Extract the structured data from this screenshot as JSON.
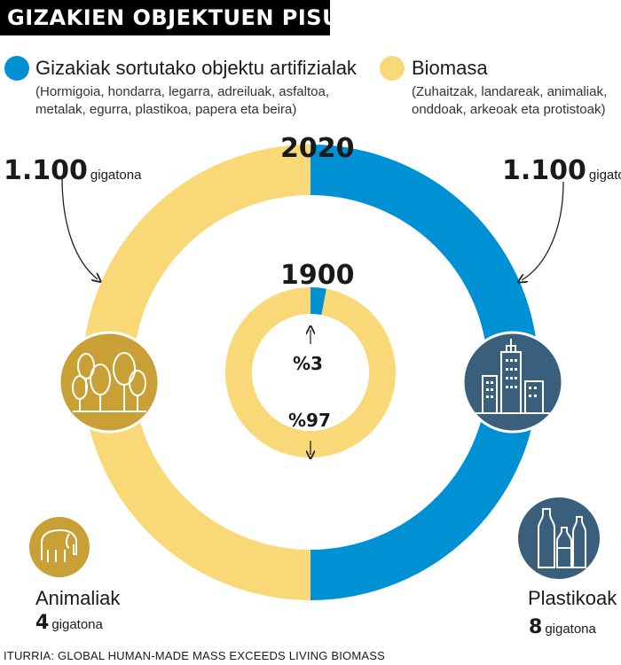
{
  "title": "GIZAKIEN OBJEKTUEN PISUA",
  "legend": [
    {
      "label": "Gizakiak sortutako objektu artifizialak",
      "desc_line1": "(Hormigoia, hondarra, legarra, adreiluak, asfaltoa,",
      "desc_line2": "metalak, egurra, plastikoa, papera eta beira)",
      "color": "#0090d4"
    },
    {
      "label": "Biomasa",
      "desc_line1": "(Zuhaitzak, landareak, animaliak,",
      "desc_line2": "onddoak, arkeoak eta protistoak)",
      "color": "#f9d878"
    }
  ],
  "labels": {
    "biomass_2020_value": "1.100",
    "artificial_2020_value": "1.100",
    "unit": "gigatona",
    "pct_artificial_1900": "%3",
    "pct_biomass_1900": "%97",
    "animals_name": "Animaliak",
    "animals_value": "4",
    "plastics_name": "Plastikoak",
    "plastics_value": "8"
  },
  "icons": {
    "trees": "trees-icon",
    "buildings": "buildings-icon",
    "elephant": "elephant-icon",
    "bottles": "bottles-icon"
  },
  "source": "ITURRIA: GLOBAL HUMAN-MADE MASS EXCEEDS LIVING BIOMASS",
  "chart_data": [
    {
      "type": "pie",
      "title": "2020",
      "categories": [
        "Gizakiak sortutako objektu artifizialak",
        "Biomasa"
      ],
      "values": [
        1100,
        1100
      ],
      "colors": [
        "#0090d4",
        "#f9d878"
      ]
    },
    {
      "type": "pie",
      "title": "1900",
      "categories": [
        "Gizakiak sortutako objektu artifizialak",
        "Biomasa"
      ],
      "values": [
        3,
        97
      ],
      "colors": [
        "#0090d4",
        "#f9d878"
      ]
    }
  ]
}
